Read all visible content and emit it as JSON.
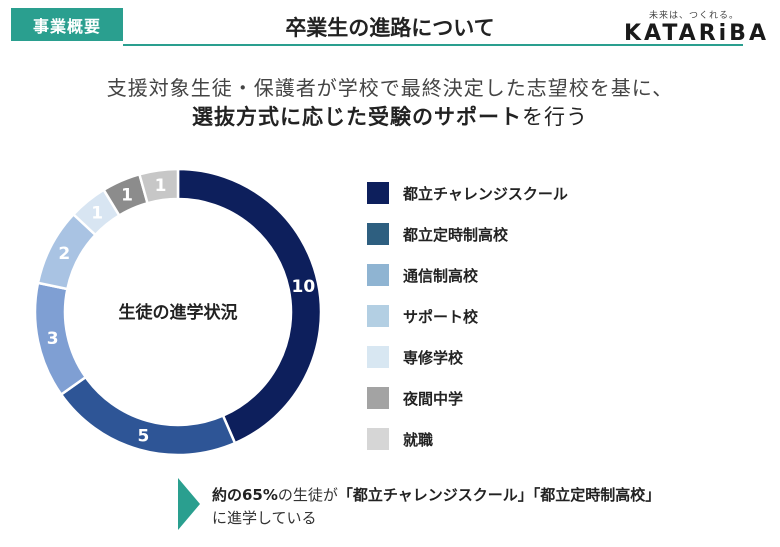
{
  "header": {
    "tag": "事業概要",
    "title": "卒業生の進路について",
    "logo_tagline": "未来は、つくれる。",
    "logo_name": "KATARiBA"
  },
  "subtitle": {
    "line1": "支援対象生徒・保護者が学校で最終決定した志望校を基に、",
    "line2_bold": "選抜方式に応じた受験のサポート",
    "line2_rest": "を行う"
  },
  "chart_data": {
    "type": "pie",
    "subtype": "donut",
    "center_label": "生徒の進学状況",
    "categories": [
      "都立チャレンジスクール",
      "都立定時制高校",
      "通信制高校",
      "サポート校",
      "専修学校",
      "夜間中学",
      "就職"
    ],
    "values": [
      10,
      5,
      3,
      2,
      1,
      1,
      1
    ],
    "colors": [
      "#0d1f5c",
      "#2e5596",
      "#7f9fd3",
      "#a9c3e3",
      "#d8e5f2",
      "#8c8c8c",
      "#c7c7c7"
    ],
    "label_colors": [
      "#ffffff",
      "#ffffff",
      "#ffffff",
      "#ffffff",
      "#ffffff",
      "#ffffff",
      "#ffffff"
    ],
    "legend_colors": [
      "#0d1f5c",
      "#2e5f80",
      "#8fb4d2",
      "#b3cfe3",
      "#d8e7f2",
      "#a3a3a3",
      "#d6d6d6"
    ],
    "legend_position": "right"
  },
  "callout": {
    "bold_part": "約の65%",
    "mid": "の生徒が",
    "bold_part2": "「都立チャレンジスクール」「都立定時制高校」",
    "line2": "に進学している"
  }
}
